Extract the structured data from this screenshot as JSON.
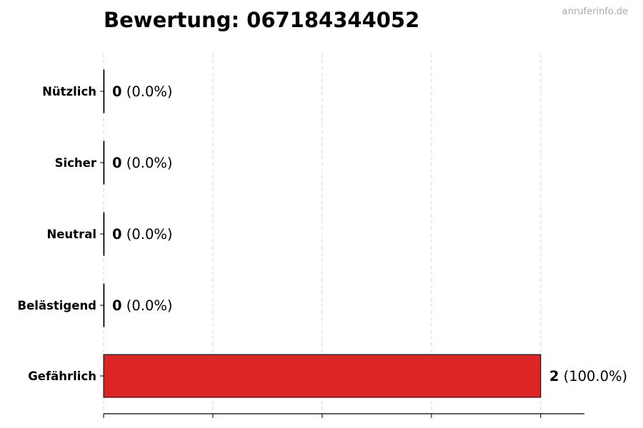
{
  "header": {
    "title": "Bewertung: 067184344052",
    "watermark": "anruferinfo.de"
  },
  "chart_data": {
    "type": "bar",
    "orientation": "horizontal",
    "title": "Bewertung: 067184344052",
    "categories": [
      "Nützlich",
      "Sicher",
      "Neutral",
      "Belästigend",
      "Gefährlich"
    ],
    "values": [
      0,
      0,
      0,
      0,
      2
    ],
    "labels": [
      "(0.0%)",
      "(0.0%)",
      "(0.0%)",
      "(0.0%)",
      "(100.0%)"
    ],
    "colors": [
      "#4caf50",
      "#4caf50",
      "#9e9e9e",
      "#ff9800",
      "#dc2626"
    ],
    "xlim": [
      0,
      2.2
    ],
    "xticks": [
      0,
      0.5,
      1,
      1.5,
      2
    ],
    "xlabel": "",
    "ylabel": "",
    "grid": "x, dashed"
  }
}
